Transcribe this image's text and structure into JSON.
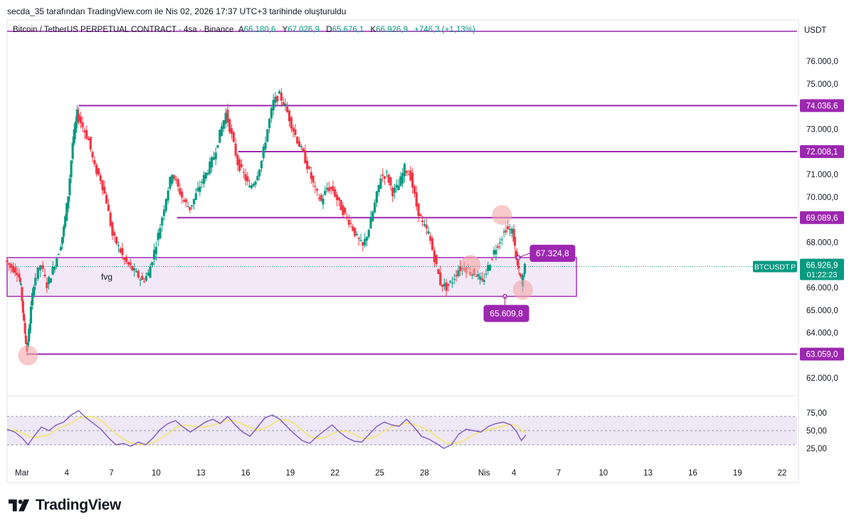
{
  "header": {
    "attribution": "secda_35 tarafından TradingView.com ile Nis 02, 2026 17:37 UTC+3 tarihinde oluşturuldu"
  },
  "legend": {
    "symbol": "Bitcoin / TetherUS PERPETUAL CONTRACT · 4sa · Binance",
    "open_label": "A",
    "open": "66.180,6",
    "high_label": "Y",
    "high": "67.026,9",
    "low_label": "D",
    "low": "65.676,1",
    "close_label": "K",
    "close": "66.926,9",
    "change": "+746,3 (+1,13%)"
  },
  "currency": "USDT",
  "brand": {
    "name": "TradingView"
  },
  "colors": {
    "up": "#089981",
    "down": "#f23645",
    "level": "#9c27b0",
    "fvg_fill": "#e9d5f0",
    "rsi_band": "#ede7f6",
    "rsi_line": "#7e57c2",
    "rsi_ma": "#f5e663",
    "price_badge": "#089981",
    "circle": "#f4a7a9"
  },
  "chart_data": {
    "type": "candlestick",
    "interval": "4sa",
    "y_price_ticks": [
      {
        "value": 62000,
        "label": "62.000,0"
      },
      {
        "value": 63000,
        "label": "63.000,0"
      },
      {
        "value": 64000,
        "label": "64.000,0"
      },
      {
        "value": 65000,
        "label": "65.000,0"
      },
      {
        "value": 66000,
        "label": "66.000,0"
      },
      {
        "value": 67000,
        "label": "67.000,0"
      },
      {
        "value": 68000,
        "label": "68.000,0"
      },
      {
        "value": 69000,
        "label": "69.000,0"
      },
      {
        "value": 70000,
        "label": "70.000,0"
      },
      {
        "value": 71000,
        "label": "71.000,0"
      },
      {
        "value": 72000,
        "label": "72.000,0"
      },
      {
        "value": 73000,
        "label": "73.000,0"
      },
      {
        "value": 74000,
        "label": "74.000,0"
      },
      {
        "value": 75000,
        "label": "75.000,0"
      },
      {
        "value": 76000,
        "label": "76.000,0"
      }
    ],
    "ylim": [
      61200,
      77200
    ],
    "x_ticks": [
      {
        "day": 1,
        "label": "Mar"
      },
      {
        "day": 4,
        "label": "4"
      },
      {
        "day": 7,
        "label": "7"
      },
      {
        "day": 10,
        "label": "10"
      },
      {
        "day": 13,
        "label": "13"
      },
      {
        "day": 16,
        "label": "16"
      },
      {
        "day": 19,
        "label": "19"
      },
      {
        "day": 22,
        "label": "22"
      },
      {
        "day": 25,
        "label": "25"
      },
      {
        "day": 28,
        "label": "28"
      },
      {
        "day": 32,
        "label": "Nis"
      },
      {
        "day": 34,
        "label": "4"
      },
      {
        "day": 37,
        "label": "7"
      },
      {
        "day": 40,
        "label": "10"
      },
      {
        "day": 43,
        "label": "13"
      },
      {
        "day": 46,
        "label": "16"
      },
      {
        "day": 49,
        "label": "19"
      },
      {
        "day": 52,
        "label": "22"
      }
    ],
    "xlim": [
      0.0,
      53.0
    ],
    "levels": [
      {
        "value": 74036.6,
        "label": "74.036,6",
        "start_day": 4.8
      },
      {
        "value": 72008.1,
        "label": "72.008,1",
        "start_day": 15.5
      },
      {
        "value": 69089.6,
        "label": "69.089,6",
        "start_day": 11.4
      },
      {
        "value": 63059.0,
        "label": "63.059,0",
        "start_day": 1.3
      }
    ],
    "fvg": {
      "label": "fvg",
      "top": 67324.8,
      "bottom": 65609.8,
      "start_day": 0.0,
      "end_day": 38.2
    },
    "fvg_callouts": [
      {
        "value": 67324.8,
        "label": "67.324,8",
        "day": 34.3
      },
      {
        "value": 65609.8,
        "label": "65.609,8",
        "day": 33.4
      }
    ],
    "last_price": {
      "symbol": "BTCUSDT.P",
      "value": 66926.9,
      "label": "66.926,9",
      "countdown": "01:22:23"
    },
    "circles": [
      {
        "day": 1.4,
        "value": 63000
      },
      {
        "day": 31.1,
        "value": 67000
      },
      {
        "day": 33.2,
        "value": 69200
      },
      {
        "day": 34.6,
        "value": 65900
      }
    ],
    "price_path": [
      [
        0.0,
        67200
      ],
      [
        0.4,
        66900
      ],
      [
        0.8,
        66700
      ],
      [
        1.0,
        66000
      ],
      [
        1.2,
        64400
      ],
      [
        1.4,
        63200
      ],
      [
        1.6,
        64500
      ],
      [
        1.9,
        66200
      ],
      [
        2.4,
        67000
      ],
      [
        2.8,
        66100
      ],
      [
        3.2,
        66800
      ],
      [
        3.6,
        67600
      ],
      [
        3.9,
        68600
      ],
      [
        4.2,
        70100
      ],
      [
        4.5,
        72400
      ],
      [
        4.8,
        73700
      ],
      [
        5.2,
        73100
      ],
      [
        5.6,
        72500
      ],
      [
        6.0,
        71300
      ],
      [
        6.4,
        70800
      ],
      [
        6.8,
        69800
      ],
      [
        7.2,
        68300
      ],
      [
        7.6,
        67800
      ],
      [
        8.0,
        67200
      ],
      [
        8.4,
        66900
      ],
      [
        8.8,
        66600
      ],
      [
        9.2,
        66300
      ],
      [
        9.6,
        66600
      ],
      [
        10.0,
        67600
      ],
      [
        10.4,
        68700
      ],
      [
        10.8,
        70000
      ],
      [
        11.2,
        71100
      ],
      [
        11.6,
        70400
      ],
      [
        12.0,
        69800
      ],
      [
        12.4,
        69500
      ],
      [
        12.8,
        70100
      ],
      [
        13.2,
        70700
      ],
      [
        13.6,
        71200
      ],
      [
        14.0,
        71800
      ],
      [
        14.4,
        72800
      ],
      [
        14.8,
        73700
      ],
      [
        15.2,
        72700
      ],
      [
        15.6,
        71500
      ],
      [
        16.0,
        71000
      ],
      [
        16.4,
        70400
      ],
      [
        16.8,
        70800
      ],
      [
        17.2,
        71600
      ],
      [
        17.6,
        73000
      ],
      [
        18.0,
        74200
      ],
      [
        18.4,
        74500
      ],
      [
        18.8,
        74000
      ],
      [
        19.2,
        73200
      ],
      [
        19.6,
        72500
      ],
      [
        20.0,
        71900
      ],
      [
        20.4,
        71100
      ],
      [
        20.8,
        70300
      ],
      [
        21.2,
        69800
      ],
      [
        21.6,
        70400
      ],
      [
        22.0,
        70300
      ],
      [
        22.4,
        69700
      ],
      [
        22.8,
        69200
      ],
      [
        23.2,
        68800
      ],
      [
        23.6,
        68200
      ],
      [
        24.0,
        67800
      ],
      [
        24.4,
        68600
      ],
      [
        24.8,
        69700
      ],
      [
        25.2,
        70900
      ],
      [
        25.6,
        71000
      ],
      [
        26.0,
        70200
      ],
      [
        26.4,
        70500
      ],
      [
        26.8,
        71300
      ],
      [
        27.2,
        70900
      ],
      [
        27.6,
        69600
      ],
      [
        28.0,
        68800
      ],
      [
        28.4,
        68400
      ],
      [
        28.8,
        67300
      ],
      [
        29.2,
        66200
      ],
      [
        29.6,
        66000
      ],
      [
        30.0,
        66300
      ],
      [
        30.4,
        66800
      ],
      [
        30.8,
        66900
      ],
      [
        31.2,
        66700
      ],
      [
        31.6,
        66600
      ],
      [
        32.0,
        66200
      ],
      [
        32.4,
        66900
      ],
      [
        32.8,
        67600
      ],
      [
        33.2,
        68100
      ],
      [
        33.6,
        68600
      ],
      [
        34.0,
        68500
      ],
      [
        34.2,
        67400
      ],
      [
        34.4,
        66700
      ],
      [
        34.6,
        66200
      ],
      [
        34.8,
        66900
      ]
    ],
    "rsi": {
      "ticks": [
        {
          "value": 25,
          "label": "25,00"
        },
        {
          "value": 50,
          "label": "50,00"
        },
        {
          "value": 75,
          "label": "75,00"
        }
      ],
      "upper": 70,
      "lower": 30,
      "ylim": [
        15,
        85
      ],
      "values": [
        [
          0.0,
          52
        ],
        [
          0.5,
          48
        ],
        [
          1.0,
          40
        ],
        [
          1.4,
          30
        ],
        [
          1.8,
          42
        ],
        [
          2.3,
          55
        ],
        [
          2.8,
          50
        ],
        [
          3.3,
          58
        ],
        [
          3.8,
          62
        ],
        [
          4.3,
          72
        ],
        [
          4.8,
          78
        ],
        [
          5.3,
          68
        ],
        [
          5.8,
          60
        ],
        [
          6.3,
          52
        ],
        [
          6.8,
          40
        ],
        [
          7.3,
          30
        ],
        [
          7.8,
          32
        ],
        [
          8.3,
          28
        ],
        [
          8.8,
          34
        ],
        [
          9.3,
          30
        ],
        [
          9.8,
          40
        ],
        [
          10.3,
          52
        ],
        [
          10.8,
          60
        ],
        [
          11.3,
          64
        ],
        [
          11.8,
          55
        ],
        [
          12.3,
          48
        ],
        [
          12.8,
          55
        ],
        [
          13.3,
          62
        ],
        [
          13.8,
          66
        ],
        [
          14.3,
          60
        ],
        [
          14.8,
          70
        ],
        [
          15.3,
          58
        ],
        [
          15.8,
          48
        ],
        [
          16.3,
          42
        ],
        [
          16.8,
          55
        ],
        [
          17.3,
          68
        ],
        [
          17.8,
          72
        ],
        [
          18.3,
          66
        ],
        [
          18.8,
          55
        ],
        [
          19.3,
          45
        ],
        [
          19.8,
          36
        ],
        [
          20.3,
          32
        ],
        [
          20.8,
          42
        ],
        [
          21.3,
          50
        ],
        [
          21.8,
          58
        ],
        [
          22.3,
          48
        ],
        [
          22.8,
          40
        ],
        [
          23.3,
          35
        ],
        [
          23.8,
          34
        ],
        [
          24.3,
          45
        ],
        [
          24.8,
          56
        ],
        [
          25.3,
          62
        ],
        [
          25.8,
          58
        ],
        [
          26.3,
          56
        ],
        [
          26.8,
          66
        ],
        [
          27.3,
          55
        ],
        [
          27.8,
          42
        ],
        [
          28.3,
          38
        ],
        [
          28.8,
          32
        ],
        [
          29.3,
          25
        ],
        [
          29.8,
          30
        ],
        [
          30.3,
          45
        ],
        [
          30.8,
          52
        ],
        [
          31.3,
          50
        ],
        [
          31.8,
          48
        ],
        [
          32.3,
          56
        ],
        [
          32.8,
          60
        ],
        [
          33.3,
          62
        ],
        [
          33.8,
          58
        ],
        [
          34.2,
          48
        ],
        [
          34.5,
          36
        ],
        [
          34.8,
          44
        ]
      ]
    }
  }
}
